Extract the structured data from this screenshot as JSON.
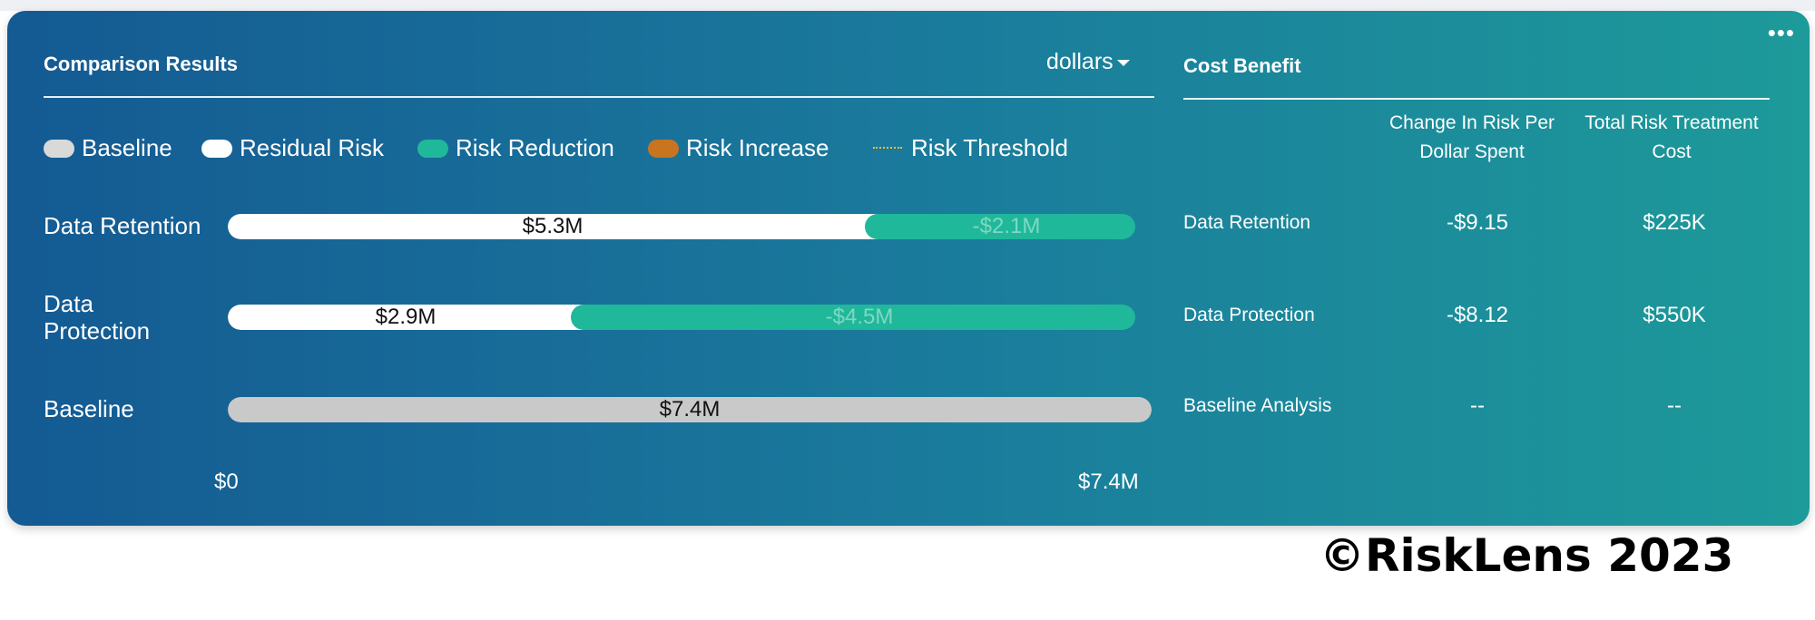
{
  "comparison": {
    "title": "Comparison Results",
    "units_label": "dollars",
    "legend": [
      {
        "label": "Baseline",
        "color": "#d9d9d9"
      },
      {
        "label": "Residual Risk",
        "color": "#ffffff"
      },
      {
        "label": "Risk Reduction",
        "color": "#20b89a"
      },
      {
        "label": "Risk Increase",
        "color": "#c9741f"
      },
      {
        "label": "Risk Threshold",
        "color": "#f1c232"
      }
    ],
    "rows": [
      {
        "label": "Data Retention",
        "residual_label": "$5.3M",
        "residual_value": 5.3,
        "reduction_label": "-$2.1M",
        "reduction_value": 2.1
      },
      {
        "label_line1": "Data",
        "label_line2": "Protection",
        "residual_label": "$2.9M",
        "residual_value": 2.9,
        "reduction_label": "-$4.5M",
        "reduction_value": 4.5
      },
      {
        "label": "Baseline",
        "baseline_label": "$7.4M",
        "baseline_value": 7.4
      }
    ],
    "axis": {
      "min_label": "$0",
      "max_label": "$7.4M",
      "max": 7.4
    }
  },
  "cost_benefit": {
    "title": "Cost Benefit",
    "col1_line1": "Change In Risk Per",
    "col1_line2": "Dollar Spent",
    "col2_line1": "Total Risk Treatment",
    "col2_line2": "Cost",
    "rows": [
      {
        "label": "Data Retention",
        "change": "-$9.15",
        "cost": "$225K"
      },
      {
        "label": "Data Protection",
        "change": "-$8.12",
        "cost": "$550K"
      },
      {
        "label": "Baseline Analysis",
        "change": "--",
        "cost": "--"
      }
    ]
  },
  "more_icon": "more-horizontal-icon",
  "copyright": "©RiskLens 2023"
}
